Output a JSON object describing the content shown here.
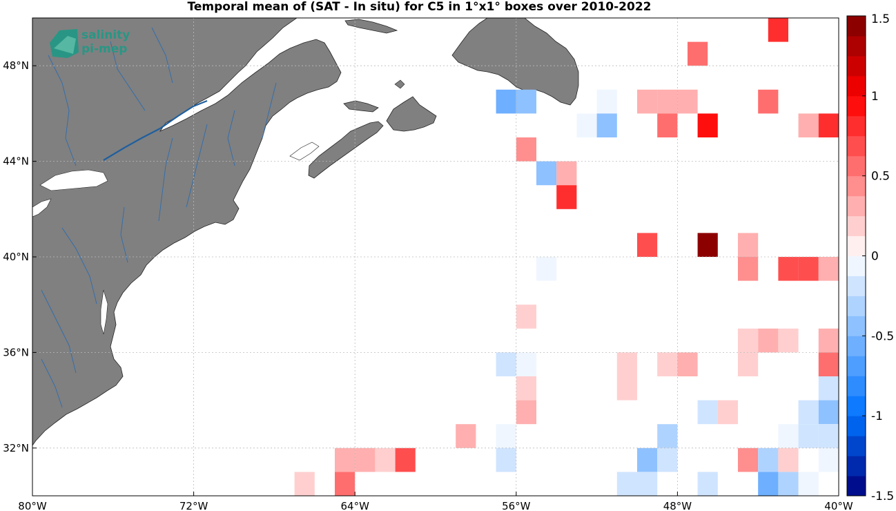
{
  "title": "Temporal mean of (SAT - In situ) for C5 in 1°x1° boxes over 2010-2022",
  "logo": {
    "line1": "salinity",
    "line2": "pi-mep"
  },
  "x_ticks": [
    {
      "value": -80,
      "label": "80°W"
    },
    {
      "value": -72,
      "label": "72°W"
    },
    {
      "value": -64,
      "label": "64°W"
    },
    {
      "value": -56,
      "label": "56°W"
    },
    {
      "value": -48,
      "label": "48°W"
    },
    {
      "value": -40,
      "label": "40°W"
    }
  ],
  "y_ticks": [
    {
      "value": 48,
      "label": "48°N"
    },
    {
      "value": 44,
      "label": "44°N"
    },
    {
      "value": 40,
      "label": "40°N"
    },
    {
      "value": 36,
      "label": "36°N"
    },
    {
      "value": 32,
      "label": "32°N"
    }
  ],
  "colorbar": {
    "min": -1.5,
    "max": 1.5,
    "levels": 24,
    "ticks": [
      {
        "value": 1.5,
        "label": "1.5"
      },
      {
        "value": 1,
        "label": "1"
      },
      {
        "value": 0.5,
        "label": "0.5"
      },
      {
        "value": 0,
        "label": "0"
      },
      {
        "value": -0.5,
        "label": "-0.5"
      },
      {
        "value": -1,
        "label": "-1"
      },
      {
        "value": -1.5,
        "label": "-1.5"
      }
    ]
  },
  "colors": {
    "land": "#808080",
    "river": "#1f5f9e",
    "grid": "#bbbbbb"
  },
  "chart_data": {
    "type": "heatmap",
    "title": "Temporal mean of (SAT - In situ) for C5 in 1°x1° boxes over 2010-2022",
    "xlim": [
      -80,
      -40
    ],
    "ylim": [
      30,
      50
    ],
    "cell_size_deg": 1,
    "cells": [
      {
        "lon": -43,
        "lat": 49.5,
        "v": 0.75
      },
      {
        "lon": -47,
        "lat": 48.5,
        "v": 0.6
      },
      {
        "lon": -56.5,
        "lat": 46.5,
        "v": -0.6
      },
      {
        "lon": -55.5,
        "lat": 46.5,
        "v": -0.5
      },
      {
        "lon": -51.5,
        "lat": 46.5,
        "v": -0.1
      },
      {
        "lon": -49.5,
        "lat": 46.5,
        "v": 0.35
      },
      {
        "lon": -48.5,
        "lat": 46.5,
        "v": 0.25
      },
      {
        "lon": -47.5,
        "lat": 46.5,
        "v": 0.25
      },
      {
        "lon": -43.5,
        "lat": 46.5,
        "v": 0.6
      },
      {
        "lon": -52.5,
        "lat": 45.5,
        "v": -0.1
      },
      {
        "lon": -51.5,
        "lat": 45.5,
        "v": -0.4
      },
      {
        "lon": -48.5,
        "lat": 45.5,
        "v": 0.5
      },
      {
        "lon": -46.5,
        "lat": 45.5,
        "v": 0.9
      },
      {
        "lon": -41.5,
        "lat": 45.5,
        "v": 0.25
      },
      {
        "lon": -40.5,
        "lat": 45.5,
        "v": 0.8
      },
      {
        "lon": -55.5,
        "lat": 44.5,
        "v": 0.45
      },
      {
        "lon": -54.5,
        "lat": 43.5,
        "v": -0.4
      },
      {
        "lon": -53.5,
        "lat": 43.5,
        "v": 0.25
      },
      {
        "lon": -53.5,
        "lat": 42.5,
        "v": 0.8
      },
      {
        "lon": -49.5,
        "lat": 40.5,
        "v": 0.7
      },
      {
        "lon": -46.5,
        "lat": 40.5,
        "v": 1.4
      },
      {
        "lon": -44.5,
        "lat": 40.5,
        "v": 0.3
      },
      {
        "lon": -54.5,
        "lat": 39.5,
        "v": -0.1
      },
      {
        "lon": -44.5,
        "lat": 39.5,
        "v": 0.4
      },
      {
        "lon": -42.5,
        "lat": 39.5,
        "v": 0.7
      },
      {
        "lon": -41.5,
        "lat": 39.5,
        "v": 0.7
      },
      {
        "lon": -40.5,
        "lat": 39.5,
        "v": 0.35
      },
      {
        "lon": -55.5,
        "lat": 37.5,
        "v": 0.15
      },
      {
        "lon": -44.5,
        "lat": 36.5,
        "v": 0.15
      },
      {
        "lon": -43.5,
        "lat": 36.5,
        "v": 0.35
      },
      {
        "lon": -42.5,
        "lat": 36.5,
        "v": 0.15
      },
      {
        "lon": -40.5,
        "lat": 36.5,
        "v": 0.35
      },
      {
        "lon": -56.5,
        "lat": 35.5,
        "v": -0.2
      },
      {
        "lon": -55.5,
        "lat": 35.5,
        "v": -0.1
      },
      {
        "lon": -50.5,
        "lat": 35.5,
        "v": 0.15
      },
      {
        "lon": -48.5,
        "lat": 35.5,
        "v": 0.15
      },
      {
        "lon": -47.5,
        "lat": 35.5,
        "v": 0.3
      },
      {
        "lon": -44.5,
        "lat": 35.5,
        "v": 0.15
      },
      {
        "lon": -40.5,
        "lat": 35.5,
        "v": 0.5
      },
      {
        "lon": -55.5,
        "lat": 34.5,
        "v": 0.15
      },
      {
        "lon": -50.5,
        "lat": 34.5,
        "v": 0.15
      },
      {
        "lon": -40.5,
        "lat": 34.5,
        "v": -0.2
      },
      {
        "lon": -55.5,
        "lat": 33.5,
        "v": 0.3
      },
      {
        "lon": -46.5,
        "lat": 33.5,
        "v": -0.25
      },
      {
        "lon": -45.5,
        "lat": 33.5,
        "v": 0.2
      },
      {
        "lon": -41.5,
        "lat": 33.5,
        "v": -0.15
      },
      {
        "lon": -40.5,
        "lat": 33.5,
        "v": -0.45
      },
      {
        "lon": -58.5,
        "lat": 32.5,
        "v": 0.35
      },
      {
        "lon": -56.5,
        "lat": 32.5,
        "v": -0.1
      },
      {
        "lon": -48.5,
        "lat": 32.5,
        "v": -0.35
      },
      {
        "lon": -42.5,
        "lat": 32.5,
        "v": -0.1
      },
      {
        "lon": -41.5,
        "lat": 32.5,
        "v": -0.15
      },
      {
        "lon": -40.5,
        "lat": 32.5,
        "v": -0.2
      },
      {
        "lon": -64.5,
        "lat": 31.5,
        "v": 0.3
      },
      {
        "lon": -63.5,
        "lat": 31.5,
        "v": 0.3
      },
      {
        "lon": -62.5,
        "lat": 31.5,
        "v": 0.15
      },
      {
        "lon": -61.5,
        "lat": 31.5,
        "v": 0.65
      },
      {
        "lon": -56.5,
        "lat": 31.5,
        "v": -0.2
      },
      {
        "lon": -49.5,
        "lat": 31.5,
        "v": -0.5
      },
      {
        "lon": -48.5,
        "lat": 31.5,
        "v": -0.15
      },
      {
        "lon": -44.5,
        "lat": 31.5,
        "v": 0.4
      },
      {
        "lon": -43.5,
        "lat": 31.5,
        "v": -0.35
      },
      {
        "lon": -42.5,
        "lat": 31.5,
        "v": 0.2
      },
      {
        "lon": -40.5,
        "lat": 31.5,
        "v": -0.1
      },
      {
        "lon": -66.5,
        "lat": 30.5,
        "v": 0.15
      },
      {
        "lon": -64.5,
        "lat": 30.5,
        "v": 0.5
      },
      {
        "lon": -50.5,
        "lat": 30.5,
        "v": -0.2
      },
      {
        "lon": -49.5,
        "lat": 30.5,
        "v": -0.25
      },
      {
        "lon": -46.5,
        "lat": 30.5,
        "v": -0.25
      },
      {
        "lon": -43.5,
        "lat": 30.5,
        "v": -0.55
      },
      {
        "lon": -42.5,
        "lat": 30.5,
        "v": -0.3
      },
      {
        "lon": -41.5,
        "lat": 30.5,
        "v": -0.1
      }
    ]
  }
}
